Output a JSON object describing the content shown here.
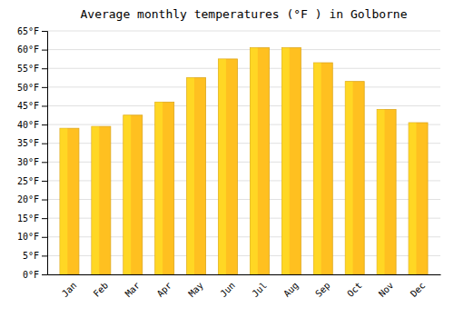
{
  "chart_data": {
    "type": "bar",
    "title": "Average monthly temperatures (°F ) in Golborne",
    "categories": [
      "Jan",
      "Feb",
      "Mar",
      "Apr",
      "May",
      "Jun",
      "Jul",
      "Aug",
      "Sep",
      "Oct",
      "Nov",
      "Dec"
    ],
    "values": [
      39,
      39.5,
      42.5,
      46,
      52.5,
      57.5,
      60.5,
      60.5,
      56.5,
      51.5,
      44,
      40.5
    ],
    "color": "#FFC020",
    "ylim": [
      0,
      65
    ],
    "yticks": [
      {
        "value": 0,
        "label": "0°F"
      },
      {
        "value": 5,
        "label": "5°F"
      },
      {
        "value": 10,
        "label": "10°F"
      },
      {
        "value": 15,
        "label": "15°F"
      },
      {
        "value": 20,
        "label": "20°F"
      },
      {
        "value": 25,
        "label": "25°F"
      },
      {
        "value": 30,
        "label": "30°F"
      },
      {
        "value": 35,
        "label": "35°F"
      },
      {
        "value": 40,
        "label": "40°F"
      },
      {
        "value": 45,
        "label": "45°F"
      },
      {
        "value": 50,
        "label": "50°F"
      },
      {
        "value": 55,
        "label": "55°F"
      },
      {
        "value": 60,
        "label": "60°F"
      },
      {
        "value": 65,
        "label": "65°F"
      }
    ],
    "grid": true
  }
}
